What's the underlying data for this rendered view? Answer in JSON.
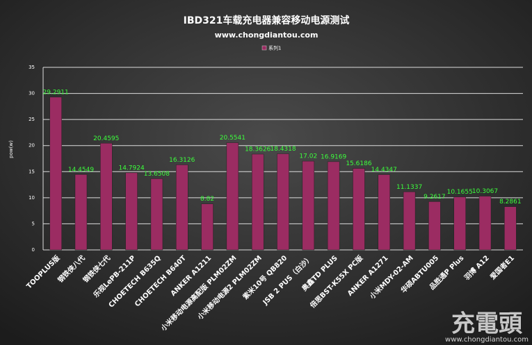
{
  "chart_data": {
    "type": "bar",
    "title": "IBD321车载充电器兼容移动电源测试",
    "subtitle": "www.chongdiantou.com",
    "y_label": "pow(w)",
    "categories": [
      "TOOPLUS版",
      "钢铁侠八代",
      "钢铁侠七代",
      "乐视LePB-211P",
      "CHOETECH B635Q",
      "CHOETECH B640T",
      "ANKER A1211",
      "小米移动电源高配版 PLM02ZM",
      "小米移动电源2 PLM02ZM",
      "紫米10号 QB820",
      "JSB 2 PUS（白沙）",
      "奥鑫TD PLUS",
      "倍思BST-K55X PC版",
      "ANKER A1271",
      "小米MDY-02-AM",
      "华硕ABTU005",
      "品胜通P Plus",
      "羽博 A12",
      "爱国者E1"
    ],
    "series": [
      {
        "name": "系列1",
        "color": "#9b2c62",
        "values": [
          29.2911,
          14.4549,
          20.4595,
          14.7924,
          13.6508,
          16.3126,
          8.82,
          20.5541,
          18.3626,
          18.4318,
          17.02,
          16.9169,
          15.6186,
          14.4347,
          11.1337,
          9.2617,
          10.1655,
          10.3067,
          8.2861
        ]
      }
    ],
    "value_label_color": "#3cff3c",
    "ylim": [
      0,
      35
    ],
    "yticks": [
      0,
      5,
      10,
      15,
      20,
      25,
      30,
      35
    ],
    "grid": true,
    "legend": "top"
  },
  "watermark": {
    "logo": "充電頭",
    "url": "www.chongdiantou.com"
  }
}
